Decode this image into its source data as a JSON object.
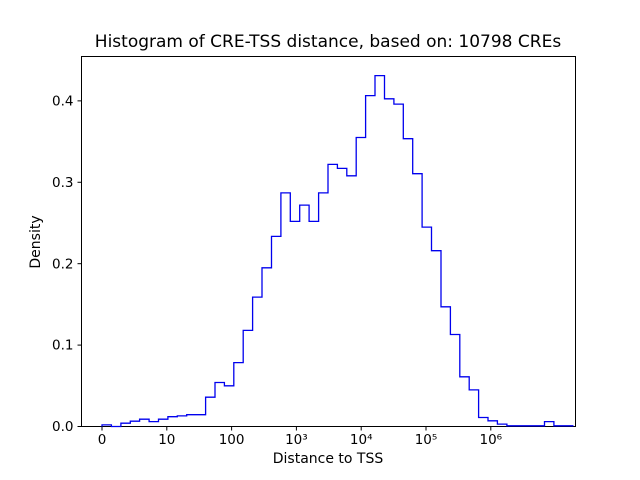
{
  "figure": {
    "title": "Histogram of CRE-TSS distance, based on: 10798 CREs",
    "background": "#ffffff"
  },
  "chart_data": {
    "type": "histogram-step",
    "title": "Histogram of CRE-TSS distance, based on: 10798 CREs",
    "xlabel": "Distance to TSS",
    "ylabel": "Density",
    "n_samples": 10798,
    "line_color": "#0000ee",
    "axes_color": "#000000",
    "x_scale": "symlog",
    "symlog_linthresh": 10,
    "xlim": [
      -3.2,
      19000000
    ],
    "ylim": [
      0,
      0.4545
    ],
    "grid": false,
    "legend": "none",
    "x_ticks": [
      {
        "value": 0,
        "label": "0"
      },
      {
        "value": 10,
        "label": "10"
      },
      {
        "value": 100,
        "label": "100"
      },
      {
        "value": 1000,
        "label": "10³"
      },
      {
        "value": 10000,
        "label": "10⁴"
      },
      {
        "value": 100000,
        "label": "10⁵"
      },
      {
        "value": 1000000,
        "label": "10⁶"
      }
    ],
    "y_ticks": [
      {
        "value": 0.0,
        "label": "0.0"
      },
      {
        "value": 0.1,
        "label": "0.1"
      },
      {
        "value": 0.2,
        "label": "0.2"
      },
      {
        "value": 0.3,
        "label": "0.3"
      },
      {
        "value": 0.4,
        "label": "0.4"
      }
    ],
    "bin_edges": [
      0,
      1.45,
      2.91,
      4.36,
      5.81,
      7.27,
      8.72,
      10.4,
      14.5,
      20.3,
      28.4,
      39.7,
      55.4,
      77.4,
      108,
      151,
      211,
      295,
      413,
      576,
      805,
      1125,
      1572,
      2197,
      3070,
      4290,
      5994,
      8376,
      11704,
      16354,
      22852,
      31932,
      44620,
      62349,
      87125,
      121742,
      170110,
      237695,
      332123,
      464086,
      648471,
      906132,
      1266183,
      1769288,
      2472246,
      3454531,
      4827057,
      6745055,
      9425386,
      13170947,
      18404867
    ],
    "densities": [
      0.002,
      0.0,
      0.004,
      0.0065,
      0.009,
      0.006,
      0.009,
      0.012,
      0.013,
      0.0145,
      0.0145,
      0.036,
      0.054,
      0.05,
      0.0785,
      0.118,
      0.159,
      0.195,
      0.2335,
      0.287,
      0.252,
      0.272,
      0.252,
      0.287,
      0.322,
      0.317,
      0.308,
      0.355,
      0.4065,
      0.431,
      0.4025,
      0.396,
      0.3535,
      0.3105,
      0.245,
      0.216,
      0.147,
      0.113,
      0.061,
      0.045,
      0.011,
      0.007,
      0.003,
      0.0008,
      0.0008,
      0.0008,
      0.0008,
      0.006,
      0.0008,
      0.0008
    ],
    "peak_density": 0.431
  }
}
